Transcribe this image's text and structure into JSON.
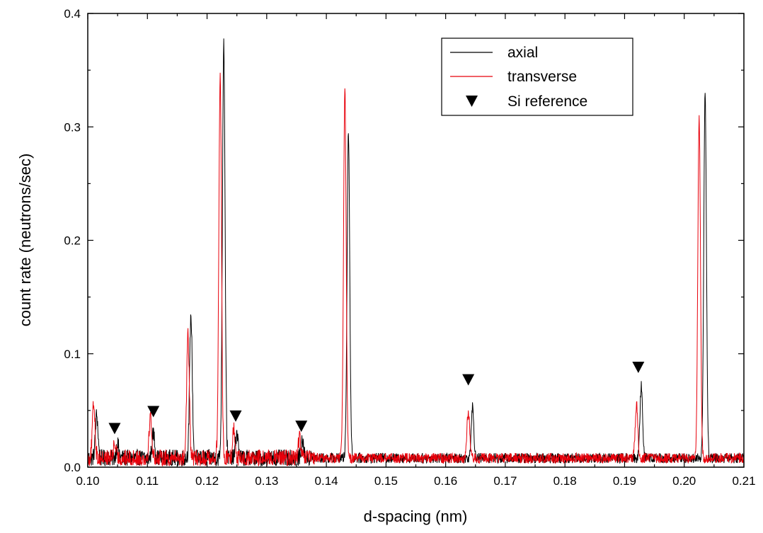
{
  "chart_data": {
    "type": "line",
    "title": "",
    "xlabel": "d-spacing (nm)",
    "ylabel": "count rate (neutrons/sec)",
    "xlim": [
      0.1,
      0.21
    ],
    "ylim": [
      0.0,
      0.4
    ],
    "x_ticks": [
      "0.10",
      "0.11",
      "0.12",
      "0.13",
      "0.14",
      "0.15",
      "0.16",
      "0.17",
      "0.18",
      "0.19",
      "0.20",
      "0.21"
    ],
    "y_ticks": [
      "0.0",
      "0.1",
      "0.2",
      "0.3",
      "0.4"
    ],
    "grid": false,
    "legend_position": "top-right",
    "legend": [
      {
        "label": "axial",
        "kind": "line",
        "color": "#000000"
      },
      {
        "label": "transverse",
        "kind": "line",
        "color": "#e8000b"
      },
      {
        "label": "Si reference",
        "kind": "marker",
        "color": "#000000"
      }
    ],
    "series": [
      {
        "name": "axial",
        "color": "#000000",
        "baseline": 0.008,
        "peaks": [
          {
            "x": 0.1015,
            "y": 0.046
          },
          {
            "x": 0.105,
            "y": 0.02
          },
          {
            "x": 0.111,
            "y": 0.03
          },
          {
            "x": 0.1173,
            "y": 0.134
          },
          {
            "x": 0.1228,
            "y": 0.376
          },
          {
            "x": 0.125,
            "y": 0.03
          },
          {
            "x": 0.136,
            "y": 0.022
          },
          {
            "x": 0.1437,
            "y": 0.296
          },
          {
            "x": 0.1645,
            "y": 0.053
          },
          {
            "x": 0.1928,
            "y": 0.072
          },
          {
            "x": 0.2035,
            "y": 0.33
          }
        ]
      },
      {
        "name": "transverse",
        "color": "#e8000b",
        "baseline": 0.008,
        "peaks": [
          {
            "x": 0.101,
            "y": 0.056
          },
          {
            "x": 0.1045,
            "y": 0.02
          },
          {
            "x": 0.1105,
            "y": 0.045
          },
          {
            "x": 0.1168,
            "y": 0.117
          },
          {
            "x": 0.1222,
            "y": 0.346
          },
          {
            "x": 0.1245,
            "y": 0.034
          },
          {
            "x": 0.1355,
            "y": 0.025
          },
          {
            "x": 0.1431,
            "y": 0.333
          },
          {
            "x": 0.1638,
            "y": 0.05
          },
          {
            "x": 0.192,
            "y": 0.055
          },
          {
            "x": 0.2025,
            "y": 0.308
          }
        ]
      }
    ],
    "markers": {
      "name": "Si reference",
      "symbol": "down-triangle",
      "points": [
        {
          "x": 0.1045,
          "y": 0.034
        },
        {
          "x": 0.111,
          "y": 0.049
        },
        {
          "x": 0.1248,
          "y": 0.045
        },
        {
          "x": 0.1358,
          "y": 0.036
        },
        {
          "x": 0.1638,
          "y": 0.077
        },
        {
          "x": 0.1923,
          "y": 0.088
        }
      ]
    }
  }
}
